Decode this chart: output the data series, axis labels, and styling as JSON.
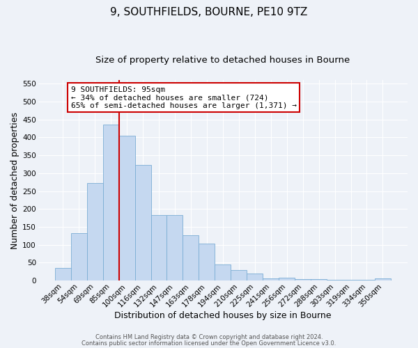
{
  "title": "9, SOUTHFIELDS, BOURNE, PE10 9TZ",
  "subtitle": "Size of property relative to detached houses in Bourne",
  "xlabel": "Distribution of detached houses by size in Bourne",
  "ylabel": "Number of detached properties",
  "categories": [
    "38sqm",
    "54sqm",
    "69sqm",
    "85sqm",
    "100sqm",
    "116sqm",
    "132sqm",
    "147sqm",
    "163sqm",
    "178sqm",
    "194sqm",
    "210sqm",
    "225sqm",
    "241sqm",
    "256sqm",
    "272sqm",
    "288sqm",
    "303sqm",
    "319sqm",
    "334sqm",
    "350sqm"
  ],
  "values": [
    35,
    133,
    273,
    435,
    405,
    322,
    184,
    184,
    127,
    103,
    45,
    30,
    20,
    7,
    8,
    4,
    5,
    3,
    3,
    2,
    6
  ],
  "bar_color": "#c5d8f0",
  "bar_edge_color": "#7aadd4",
  "vline_color": "#cc0000",
  "ylim": [
    0,
    560
  ],
  "yticks": [
    0,
    50,
    100,
    150,
    200,
    250,
    300,
    350,
    400,
    450,
    500,
    550
  ],
  "annotation_title": "9 SOUTHFIELDS: 95sqm",
  "annotation_line1": "← 34% of detached houses are smaller (724)",
  "annotation_line2": "65% of semi-detached houses are larger (1,371) →",
  "annotation_box_color": "#cc0000",
  "footer1": "Contains HM Land Registry data © Crown copyright and database right 2024.",
  "footer2": "Contains public sector information licensed under the Open Government Licence v3.0.",
  "bg_color": "#eef2f8",
  "grid_color": "#ffffff",
  "title_fontsize": 11,
  "subtitle_fontsize": 9.5,
  "label_fontsize": 9,
  "tick_fontsize": 7.5,
  "footer_fontsize": 6,
  "ann_fontsize": 8
}
